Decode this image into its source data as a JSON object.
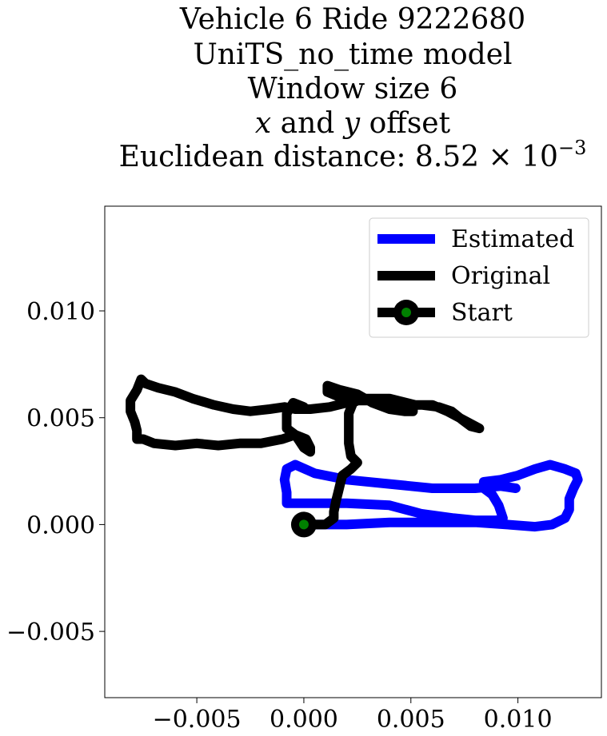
{
  "chart_data": {
    "type": "line",
    "title_lines": [
      "Vehicle 6 Ride 9222680",
      "UniTS_no_time model",
      "Window size 6"
    ],
    "title_offset_prefix": "x",
    "title_offset_middle": " and ",
    "title_offset_var2": "y",
    "title_offset_suffix": " offset",
    "title_distance_text": "Euclidean distance: 8.52 × 10",
    "title_distance_exponent": "−3",
    "xlim": [
      -0.0093,
      0.0139
    ],
    "ylim": [
      -0.0081,
      0.0149
    ],
    "xticks": [
      -0.005,
      0.0,
      0.005,
      0.01
    ],
    "xtick_labels": [
      "−0.005",
      "0.000",
      "0.005",
      "0.010"
    ],
    "yticks": [
      -0.005,
      0.0,
      0.005,
      0.01
    ],
    "ytick_labels": [
      "−0.005",
      "0.000",
      "0.005",
      "0.010"
    ],
    "grid": false,
    "legend_position": "top-right",
    "series": [
      {
        "name": "Estimated",
        "color": "#0000ff",
        "points": [
          [
            0.0,
            0.0
          ],
          [
            0.002,
            0.0
          ],
          [
            0.004,
            0.0001
          ],
          [
            0.006,
            0.0001
          ],
          [
            0.008,
            0.0001
          ],
          [
            0.0095,
            0.0
          ],
          [
            0.0108,
            -0.0001
          ],
          [
            0.0116,
            0.0
          ],
          [
            0.0122,
            0.0003
          ],
          [
            0.0124,
            0.0007
          ],
          [
            0.0124,
            0.0012
          ],
          [
            0.0126,
            0.0017
          ],
          [
            0.0128,
            0.0021
          ],
          [
            0.0127,
            0.0024
          ],
          [
            0.0122,
            0.0026
          ],
          [
            0.0115,
            0.0028
          ],
          [
            0.0108,
            0.0026
          ],
          [
            0.01,
            0.0023
          ],
          [
            0.0092,
            0.0021
          ],
          [
            0.0084,
            0.002
          ],
          [
            0.0084,
            0.0017
          ],
          [
            0.0088,
            0.0014
          ],
          [
            0.0091,
            0.0009
          ],
          [
            0.0093,
            0.0003
          ],
          [
            0.009,
            0.0002
          ],
          [
            0.008,
            0.0002
          ],
          [
            0.007,
            0.0003
          ],
          [
            0.0055,
            0.0005
          ],
          [
            0.004,
            0.0009
          ],
          [
            0.002,
            0.001
          ],
          [
            0.0005,
            0.001
          ],
          [
            -0.0008,
            0.001
          ],
          [
            -0.0008,
            0.0015
          ],
          [
            -0.0009,
            0.0021
          ],
          [
            -0.0008,
            0.0026
          ],
          [
            -0.0004,
            0.0028
          ],
          [
            0.0005,
            0.0024
          ],
          [
            0.002,
            0.0021
          ],
          [
            0.004,
            0.0019
          ],
          [
            0.006,
            0.0017
          ],
          [
            0.008,
            0.0017
          ],
          [
            0.0092,
            0.0018
          ],
          [
            0.0099,
            0.0017
          ]
        ]
      },
      {
        "name": "Original",
        "color": "#000000",
        "points": [
          [
            0.0,
            0.0
          ],
          [
            0.001,
            0.0
          ],
          [
            0.0014,
            0.0003
          ],
          [
            0.0014,
            0.0006
          ],
          [
            0.0015,
            0.0011
          ],
          [
            0.0016,
            0.0015
          ],
          [
            0.0017,
            0.0019
          ],
          [
            0.0018,
            0.0023
          ],
          [
            0.0022,
            0.0026
          ],
          [
            0.0025,
            0.0029
          ],
          [
            0.0022,
            0.0032
          ],
          [
            0.0021,
            0.0038
          ],
          [
            0.0021,
            0.0045
          ],
          [
            0.0021,
            0.0052
          ],
          [
            0.0023,
            0.0057
          ],
          [
            0.0025,
            0.0058
          ],
          [
            0.0035,
            0.0058
          ],
          [
            0.0045,
            0.0057
          ],
          [
            0.0051,
            0.0055
          ],
          [
            0.0051,
            0.0053
          ],
          [
            0.0047,
            0.0053
          ],
          [
            0.004,
            0.0054
          ],
          [
            0.0032,
            0.0057
          ],
          [
            0.0025,
            0.0061
          ],
          [
            0.0017,
            0.0063
          ],
          [
            0.0011,
            0.0065
          ],
          [
            0.0011,
            0.0062
          ],
          [
            0.0016,
            0.006
          ],
          [
            0.0025,
            0.0058
          ],
          [
            0.0035,
            0.0058
          ],
          [
            0.0045,
            0.0056
          ],
          [
            0.0055,
            0.0056
          ],
          [
            0.0063,
            0.0055
          ],
          [
            0.0069,
            0.0053
          ],
          [
            0.0074,
            0.0049
          ],
          [
            0.0078,
            0.0046
          ],
          [
            0.0082,
            0.0045
          ],
          [
            0.0067,
            0.0053
          ],
          [
            0.006,
            0.0056
          ],
          [
            0.0052,
            0.0056
          ],
          [
            0.004,
            0.0059
          ],
          [
            0.0028,
            0.0059
          ],
          [
            0.002,
            0.0057
          ],
          [
            0.0012,
            0.0055
          ],
          [
            0.0003,
            0.0054
          ],
          [
            -0.0004,
            0.0054
          ],
          [
            -0.0009,
            0.0055
          ],
          [
            -0.0016,
            0.0054
          ],
          [
            -0.0025,
            0.0053
          ],
          [
            -0.0033,
            0.0054
          ],
          [
            -0.0042,
            0.0056
          ],
          [
            -0.0052,
            0.0059
          ],
          [
            -0.006,
            0.0062
          ],
          [
            -0.0068,
            0.0064
          ],
          [
            -0.0074,
            0.0066
          ],
          [
            -0.0076,
            0.0068
          ],
          [
            -0.0078,
            0.0063
          ],
          [
            -0.0081,
            0.0058
          ],
          [
            -0.0081,
            0.0053
          ],
          [
            -0.0079,
            0.0048
          ],
          [
            -0.0078,
            0.0044
          ],
          [
            -0.0078,
            0.004
          ],
          [
            -0.0075,
            0.004
          ],
          [
            -0.007,
            0.0038
          ],
          [
            -0.006,
            0.0037
          ],
          [
            -0.005,
            0.0038
          ],
          [
            -0.004,
            0.0037
          ],
          [
            -0.003,
            0.0038
          ],
          [
            -0.002,
            0.0038
          ],
          [
            -0.001,
            0.004
          ],
          [
            -0.0004,
            0.0042
          ],
          [
            0.0001,
            0.004
          ],
          [
            0.0003,
            0.0036
          ],
          [
            0.0003,
            0.0034
          ],
          [
            0.0,
            0.0036
          ],
          [
            -0.0004,
            0.0042
          ],
          [
            -0.0008,
            0.0045
          ],
          [
            -0.0008,
            0.0052
          ],
          [
            -0.0005,
            0.0057
          ],
          [
            0.0,
            0.0055
          ]
        ]
      }
    ],
    "start_point": [
      0.0,
      0.0
    ],
    "legend": [
      {
        "label": "Estimated",
        "color": "#0000ff",
        "marker": false
      },
      {
        "label": "Original",
        "color": "#000000",
        "marker": false
      },
      {
        "label": "Start",
        "color": "#000000",
        "marker": true,
        "marker_color": "#008000"
      }
    ]
  }
}
